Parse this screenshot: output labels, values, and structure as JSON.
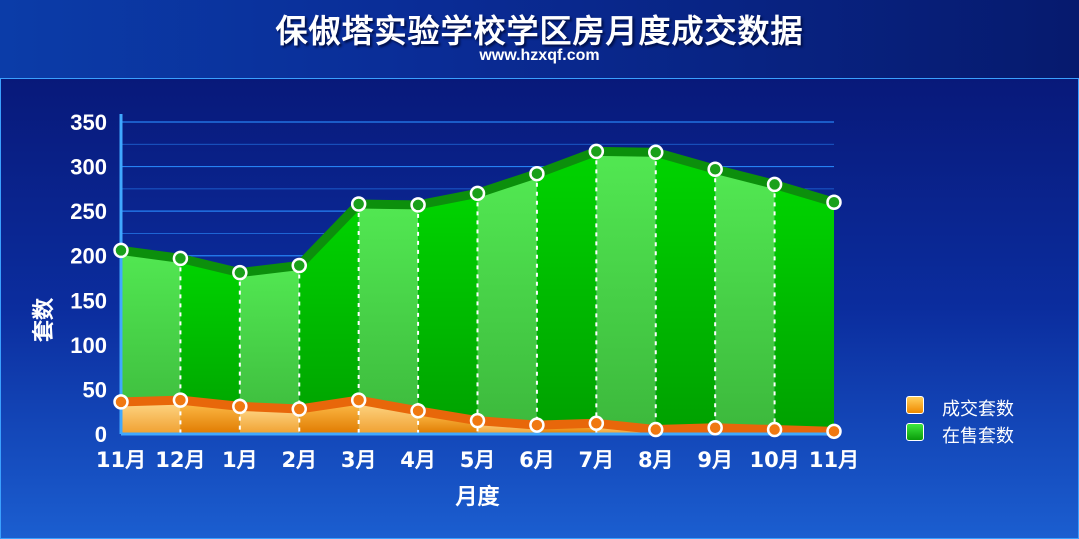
{
  "header": {
    "title": "保俶塔实验学校学区房月度成交数据",
    "subtitle": "www.hzxqf.com"
  },
  "chart_data": {
    "type": "area",
    "categories": [
      "11月",
      "12月",
      "1月",
      "2月",
      "3月",
      "4月",
      "5月",
      "6月",
      "7月",
      "8月",
      "9月",
      "10月",
      "11月"
    ],
    "series": [
      {
        "name": "成交套数",
        "values": [
          36,
          38,
          31,
          28,
          38,
          26,
          15,
          10,
          12,
          5,
          7,
          5,
          3
        ],
        "color": "#f39c12"
      },
      {
        "name": "在售套数",
        "values": [
          206,
          197,
          181,
          189,
          258,
          257,
          270,
          292,
          317,
          316,
          297,
          280,
          260
        ],
        "color": "#12c312"
      }
    ],
    "xlabel": "月度",
    "ylabel": "套数",
    "ylim": [
      0,
      350
    ],
    "yticks": [
      0,
      50,
      100,
      150,
      200,
      250,
      300,
      350
    ],
    "grid": true,
    "legend": "right"
  }
}
